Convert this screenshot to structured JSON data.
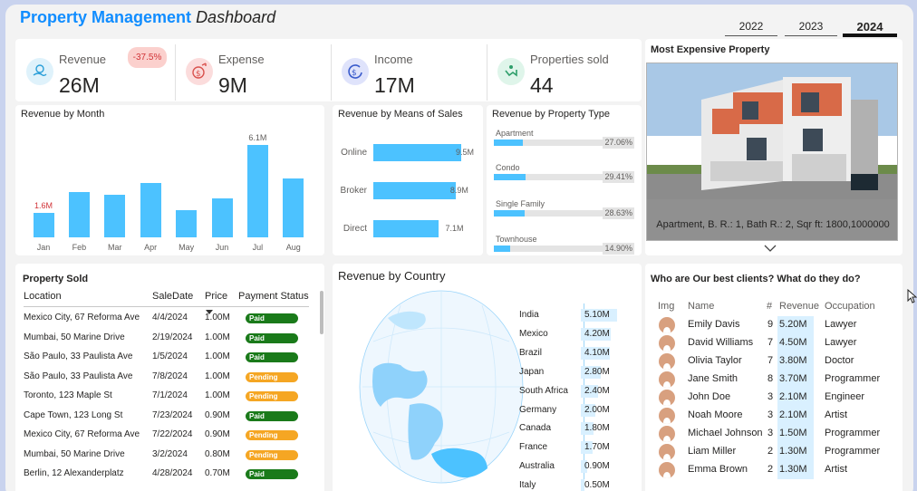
{
  "header": {
    "title_bold": "Property Management",
    "title_italic": "Dashboard",
    "years": [
      "2022",
      "2023",
      "2024"
    ],
    "active_year": "2024"
  },
  "kpis": [
    {
      "label": "Revenue",
      "value": "26M",
      "badge": "-37.5%",
      "icon": "hand-money-icon",
      "icon_bg": "#dff2fb"
    },
    {
      "label": "Expense",
      "value": "9M",
      "icon": "dollar-outflow-icon",
      "icon_bg": "#fbdcdc"
    },
    {
      "label": "Income",
      "value": "17M",
      "icon": "dollar-refresh-icon",
      "icon_bg": "#dfe3fb"
    },
    {
      "label": "Properties sold",
      "value": "44",
      "icon": "handshake-icon",
      "icon_bg": "#dff5ea"
    }
  ],
  "revenue_by_month": {
    "title": "Revenue by Month",
    "chart_data": {
      "type": "bar",
      "categories": [
        "Jan",
        "Feb",
        "Mar",
        "Apr",
        "May",
        "Jun",
        "Jul",
        "Aug"
      ],
      "values": [
        1.6,
        3.0,
        2.8,
        3.6,
        1.8,
        2.6,
        6.1,
        3.9
      ],
      "data_labels": {
        "Jan": "1.6M",
        "Jul": "6.1M"
      },
      "ylim": [
        0,
        6.1
      ]
    }
  },
  "revenue_by_means": {
    "title": "Revenue by Means of Sales",
    "chart_data": {
      "type": "bar",
      "orientation": "horizontal",
      "categories": [
        "Online",
        "Broker",
        "Direct"
      ],
      "values": [
        9.5,
        8.9,
        7.1
      ],
      "labels": [
        "9.5M",
        "8.9M",
        "7.1M"
      ]
    }
  },
  "revenue_by_type": {
    "title": "Revenue by Property Type",
    "chart_data": {
      "type": "bar",
      "orientation": "horizontal",
      "categories": [
        "Apartment",
        "Condo",
        "Single Family",
        "Townhouse"
      ],
      "values": [
        27.06,
        29.41,
        28.63,
        14.9
      ],
      "labels": [
        "27.06%",
        "29.41%",
        "28.63%",
        "14.90%"
      ]
    }
  },
  "most_expensive": {
    "title": "Most Expensive Property",
    "caption": "Apartment, B. R.: 1, Bath R.: 2, Sqr ft: 1800,1000000"
  },
  "property_sold": {
    "title": "Property Sold",
    "columns": [
      "Location",
      "SaleDate",
      "Price",
      "Payment Status"
    ],
    "rows": [
      [
        "Mexico City, 67 Reforma Ave",
        "4/4/2024",
        "1.00M",
        "Paid"
      ],
      [
        "Mumbai, 50 Marine Drive",
        "2/19/2024",
        "1.00M",
        "Paid"
      ],
      [
        "São Paulo, 33 Paulista Ave",
        "1/5/2024",
        "1.00M",
        "Paid"
      ],
      [
        "São Paulo, 33 Paulista Ave",
        "7/8/2024",
        "1.00M",
        "Pending"
      ],
      [
        "Toronto, 123 Maple St",
        "7/1/2024",
        "1.00M",
        "Pending"
      ],
      [
        "Cape Town, 123 Long St",
        "7/23/2024",
        "0.90M",
        "Paid"
      ],
      [
        "Mexico City, 67 Reforma Ave",
        "7/22/2024",
        "0.90M",
        "Pending"
      ],
      [
        "Mumbai, 50 Marine Drive",
        "3/2/2024",
        "0.80M",
        "Pending"
      ],
      [
        "Berlin, 12 Alexanderplatz",
        "4/28/2024",
        "0.70M",
        "Paid"
      ]
    ]
  },
  "revenue_by_country": {
    "title": "Revenue by Country",
    "chart_data": {
      "type": "bar",
      "orientation": "horizontal",
      "categories": [
        "India",
        "Mexico",
        "Brazil",
        "Japan",
        "South Africa",
        "Germany",
        "Canada",
        "France",
        "Australia",
        "Italy"
      ],
      "values": [
        5.1,
        4.2,
        4.1,
        2.8,
        2.4,
        2.0,
        1.8,
        1.7,
        0.9,
        0.5
      ],
      "labels": [
        "5.10M",
        "4.20M",
        "4.10M",
        "2.80M",
        "2.40M",
        "2.00M",
        "1.80M",
        "1.70M",
        "0.90M",
        "0.50M"
      ]
    }
  },
  "best_clients": {
    "title": "Who are Our best clients? What do they do?",
    "columns": [
      "Img",
      "Name",
      "#",
      "Revenue",
      "Occupation"
    ],
    "rows": [
      [
        "Emily Davis",
        "9",
        "5.20M",
        "Lawyer"
      ],
      [
        "David Williams",
        "7",
        "4.50M",
        "Lawyer"
      ],
      [
        "Olivia Taylor",
        "7",
        "3.80M",
        "Doctor"
      ],
      [
        "Jane Smith",
        "8",
        "3.70M",
        "Programmer"
      ],
      [
        "John Doe",
        "3",
        "2.10M",
        "Engineer"
      ],
      [
        "Noah Moore",
        "3",
        "2.10M",
        "Artist"
      ],
      [
        "Michael Johnson",
        "3",
        "1.50M",
        "Programmer"
      ],
      [
        "Liam Miller",
        "2",
        "1.30M",
        "Programmer"
      ],
      [
        "Emma Brown",
        "2",
        "1.30M",
        "Artist"
      ]
    ]
  },
  "colors": {
    "accent": "#118dff",
    "bar": "#4cc2ff",
    "paid": "#1a7a1a",
    "pending": "#f5a623"
  }
}
